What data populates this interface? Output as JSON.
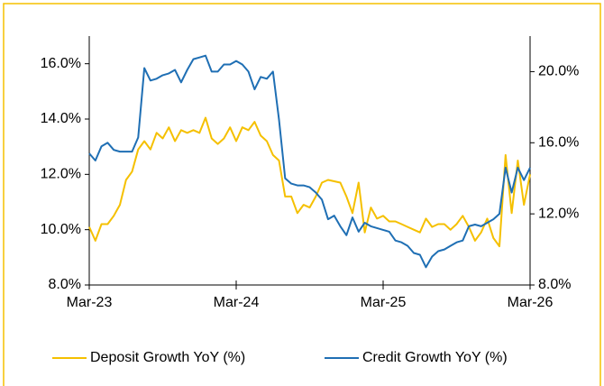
{
  "chart_data": {
    "type": "line",
    "x": [
      0,
      0.5,
      1,
      1.5,
      2,
      2.5,
      3,
      3.5,
      4,
      4.5,
      5,
      5.5,
      6,
      6.5,
      7,
      7.5,
      8,
      8.5,
      9,
      9.5,
      10,
      10.5,
      11,
      11.5,
      12,
      12.5,
      13,
      13.5,
      14,
      14.5,
      15,
      15.5,
      16,
      16.5,
      17,
      17.5,
      18,
      18.5,
      19,
      19.5,
      20,
      20.5,
      21,
      21.5,
      22,
      22.5,
      23,
      23.5,
      24,
      24.5,
      25,
      25.5,
      26,
      26.5,
      27,
      27.5,
      28,
      28.5,
      29,
      29.5,
      30,
      30.5,
      31,
      31.5,
      32,
      32.5,
      33,
      33.5,
      34,
      34.5,
      35,
      35.5,
      36
    ],
    "series": [
      {
        "name": "Deposit Growth YoY (%)",
        "color": "#f5c000",
        "axis": "y",
        "values": [
          10.1,
          9.6,
          10.2,
          10.2,
          10.5,
          10.9,
          11.8,
          12.1,
          12.9,
          13.2,
          12.9,
          13.5,
          13.3,
          13.7,
          13.2,
          13.6,
          13.5,
          13.6,
          13.5,
          14.05,
          13.3,
          13.1,
          13.3,
          13.7,
          13.2,
          13.7,
          13.6,
          13.9,
          13.4,
          13.2,
          12.7,
          12.5,
          11.2,
          11.2,
          10.6,
          10.9,
          10.8,
          11.2,
          11.7,
          11.8,
          11.75,
          11.7,
          11.2,
          10.6,
          11.7,
          9.9,
          10.8,
          10.4,
          10.5,
          10.3,
          10.3,
          10.2,
          10.1,
          10.0,
          9.9,
          10.4,
          10.1,
          10.2,
          10.2,
          10.0,
          10.2,
          10.5,
          10.1,
          9.6,
          9.9,
          10.4,
          9.7,
          9.4,
          12.7,
          10.6,
          12.5,
          10.9,
          12.0
        ]
      },
      {
        "name": "Credit Growth YoY (%)",
        "color": "#1f6fb4",
        "axis": "y2",
        "values": [
          15.4,
          15.0,
          15.8,
          16.0,
          15.6,
          15.5,
          15.5,
          15.5,
          16.3,
          20.2,
          19.5,
          19.6,
          19.8,
          19.9,
          20.1,
          19.4,
          20.1,
          20.7,
          20.8,
          20.9,
          20.0,
          20.0,
          20.4,
          20.4,
          20.6,
          20.4,
          20.0,
          19.0,
          19.7,
          19.6,
          20.0,
          17.3,
          14.0,
          13.7,
          13.6,
          13.6,
          13.5,
          13.2,
          12.8,
          11.7,
          11.9,
          11.3,
          10.8,
          11.8,
          11.0,
          11.5,
          11.3,
          11.2,
          11.1,
          11.0,
          10.5,
          10.4,
          10.2,
          9.8,
          9.7,
          9.0,
          9.6,
          9.9,
          10.0,
          10.2,
          10.4,
          10.5,
          11.3,
          11.4,
          11.3,
          11.5,
          11.7,
          12.0,
          14.6,
          13.2,
          14.6,
          13.9,
          14.6
        ]
      }
    ],
    "xlim": [
      0,
      36
    ],
    "xticks": [
      {
        "value": 0,
        "label": "Mar-23"
      },
      {
        "value": 12,
        "label": "Mar-24"
      },
      {
        "value": 24,
        "label": "Mar-25"
      },
      {
        "value": 36,
        "label": "Mar-26"
      }
    ],
    "ylim": [
      8,
      17
    ],
    "yticks": [
      {
        "value": 8,
        "label": "8.0%"
      },
      {
        "value": 10,
        "label": "10.0%"
      },
      {
        "value": 12,
        "label": "12.0%"
      },
      {
        "value": 14,
        "label": "14.0%"
      },
      {
        "value": 16,
        "label": "16.0%"
      }
    ],
    "y2lim": [
      8,
      22
    ],
    "y2ticks": [
      {
        "value": 8,
        "label": "8.0%"
      },
      {
        "value": 12,
        "label": "12.0%"
      },
      {
        "value": 16,
        "label": "16.0%"
      },
      {
        "value": 20,
        "label": "20.0%"
      }
    ],
    "legend": "bottom"
  }
}
